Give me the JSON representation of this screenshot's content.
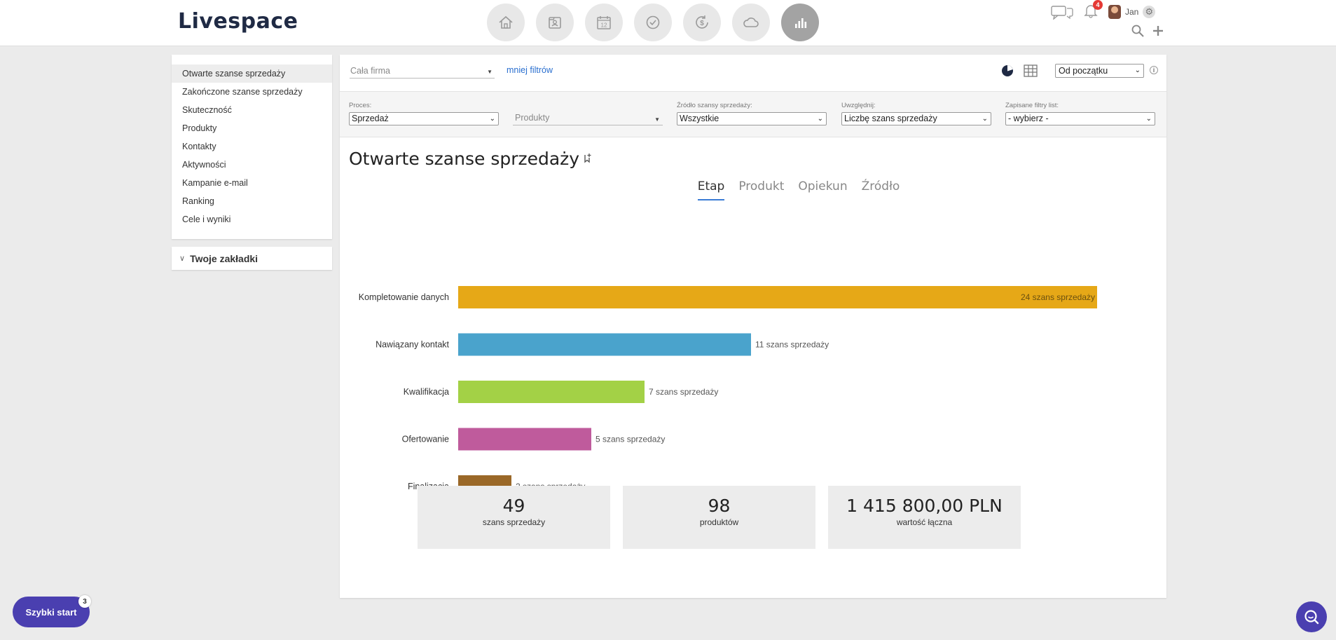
{
  "app": {
    "logo_text": "Livespace",
    "user_name": "Jan",
    "notification_count": "4"
  },
  "nav": {
    "icons": [
      "home-icon",
      "contacts-icon",
      "calendar-icon",
      "tasks-icon",
      "deals-icon",
      "cloud-icon",
      "reports-icon"
    ],
    "calendar_day": "12",
    "active": "reports-icon"
  },
  "sidebar": {
    "items": [
      {
        "label": "Otwarte szanse sprzedaży"
      },
      {
        "label": "Zakończone szanse sprzedaży"
      },
      {
        "label": "Skuteczność"
      },
      {
        "label": "Produkty"
      },
      {
        "label": "Kontakty"
      },
      {
        "label": "Aktywności"
      },
      {
        "label": "Kampanie e-mail"
      },
      {
        "label": "Ranking"
      },
      {
        "label": "Cele i wyniki"
      }
    ],
    "bookmarks_label": "Twoje zakładki"
  },
  "filterbar": {
    "company_value": "Cała firma",
    "less_filters": "mniej filtrów",
    "period_value": "Od początku"
  },
  "filters": {
    "process": {
      "label": "Proces:",
      "value": "Sprzedaż"
    },
    "products": {
      "label": "",
      "value": "Produkty"
    },
    "source": {
      "label": "Źródło szansy sprzedaży:",
      "value": "Wszystkie"
    },
    "include": {
      "label": "Uwzględnij:",
      "value": "Liczbę szans sprzedaży"
    },
    "saved": {
      "label": "Zapisane filtry list:",
      "value": "- wybierz -"
    }
  },
  "report": {
    "title": "Otwarte szanse sprzedaży",
    "tabs": [
      "Etap",
      "Produkt",
      "Opiekun",
      "Źródło"
    ],
    "active_tab": "Etap"
  },
  "chart_data": {
    "type": "bar",
    "orientation": "horizontal",
    "categories": [
      "Kompletowanie danych",
      "Nawiązany kontakt",
      "Kwalifikacja",
      "Ofertowanie",
      "Finalizacja"
    ],
    "values": [
      24,
      11,
      7,
      5,
      2
    ],
    "value_labels": [
      "24 szans sprzedaży",
      "11 szans sprzedaży",
      "7 szans sprzedaży",
      "5 szans sprzedaży",
      "2 szans sprzedaży"
    ],
    "colors": [
      "#e6a817",
      "#4aa3cc",
      "#a3d146",
      "#bf5b9c",
      "#9a6828"
    ],
    "xlim": [
      0,
      24
    ],
    "grid": false
  },
  "stats": [
    {
      "value": "49",
      "label": "szans sprzedaży"
    },
    {
      "value": "98",
      "label": "produktów"
    },
    {
      "value": "1 415 800,00 PLN",
      "label": "wartość łączna"
    }
  ],
  "quickstart": {
    "label": "Szybki start",
    "badge": "3"
  }
}
